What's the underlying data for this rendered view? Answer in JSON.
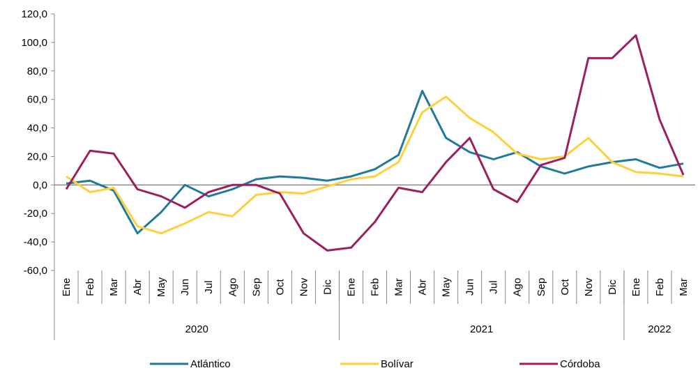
{
  "chart_data": {
    "type": "line",
    "categories": [
      "Ene",
      "Feb",
      "Mar",
      "Abr",
      "May",
      "Jun",
      "Jul",
      "Ago",
      "Sep",
      "Oct",
      "Nov",
      "Dic",
      "Ene",
      "Feb",
      "Mar",
      "Abr",
      "May",
      "Jun",
      "Jul",
      "Ago",
      "Sep",
      "Oct",
      "Nov",
      "Dic",
      "Ene",
      "Feb",
      "Mar"
    ],
    "groups": [
      {
        "label": "2020",
        "size": 12
      },
      {
        "label": "2021",
        "size": 12
      },
      {
        "label": "2022",
        "size": 3
      }
    ],
    "series": [
      {
        "name": "Atlántico",
        "color": "#1f7a9a",
        "values": [
          1,
          3,
          -4,
          -34,
          -19,
          0,
          -8,
          -3,
          4,
          6,
          5,
          3,
          6,
          11,
          21,
          66,
          33,
          23,
          18,
          23,
          13,
          8,
          13,
          16,
          18,
          12,
          15
        ]
      },
      {
        "name": "Bolívar",
        "color": "#ffd03c",
        "values": [
          6,
          -5,
          -2,
          -29,
          -34,
          -27,
          -19,
          -22,
          -7,
          -5,
          -6,
          -1,
          4,
          6,
          16,
          51,
          62,
          47,
          37,
          22,
          18,
          20,
          33,
          16,
          9,
          8,
          6
        ]
      },
      {
        "name": "Córdoba",
        "color": "#9c1f5e",
        "values": [
          -3,
          24,
          22,
          -3,
          -8,
          -16,
          -5,
          0,
          0,
          -6,
          -34,
          -46,
          -44,
          -26,
          -2,
          -5,
          16,
          33,
          -3,
          -12,
          14,
          19,
          89,
          89,
          105,
          46,
          7
        ]
      }
    ],
    "ylim": [
      -60,
      120
    ],
    "yticks": [
      {
        "value": -60,
        "label": "-60,0"
      },
      {
        "value": -40,
        "label": "-40,0"
      },
      {
        "value": -20,
        "label": "-20,0"
      },
      {
        "value": 0,
        "label": "0,0"
      },
      {
        "value": 20,
        "label": "20,0"
      },
      {
        "value": 40,
        "label": "40,0"
      },
      {
        "value": 60,
        "label": "60,0"
      },
      {
        "value": 80,
        "label": "80,0"
      },
      {
        "value": 100,
        "label": "100,0"
      },
      {
        "value": 120,
        "label": "120,0"
      }
    ],
    "legend": "bottom"
  }
}
